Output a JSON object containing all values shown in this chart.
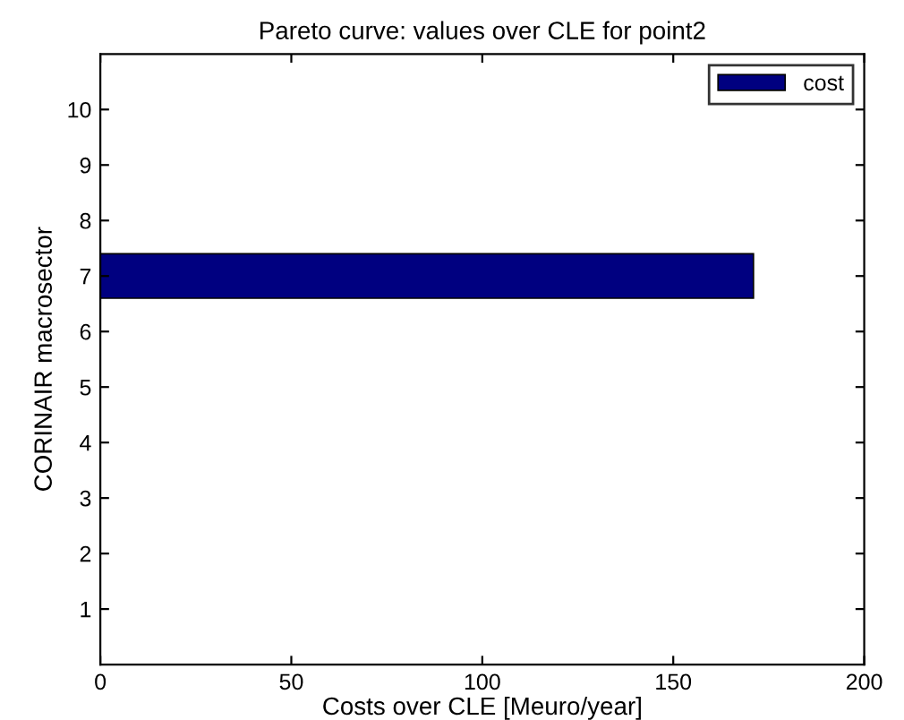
{
  "chart_data": {
    "type": "bar",
    "orientation": "horizontal",
    "title": "Pareto curve: values over CLE for point2",
    "xlabel": "Costs over CLE [Meuro/year]",
    "ylabel": "CORINAIR macrosector",
    "categories": [
      "10",
      "9",
      "8",
      "7",
      "6",
      "5",
      "4",
      "3",
      "2",
      "1"
    ],
    "series": [
      {
        "name": "cost",
        "color": "#000080",
        "values": [
          null,
          null,
          null,
          171,
          null,
          null,
          null,
          null,
          null,
          null
        ]
      }
    ],
    "xlim": [
      0,
      200
    ],
    "xticks": [
      0,
      50,
      100,
      150,
      200
    ],
    "grid": false,
    "legend": "top right"
  }
}
